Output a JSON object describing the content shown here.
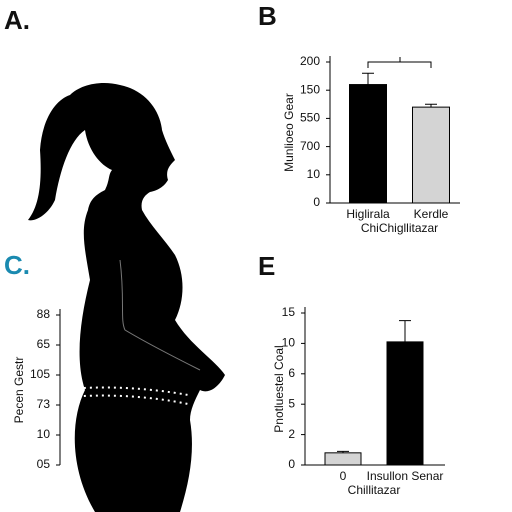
{
  "panel_a": {
    "label": "A."
  },
  "chart_data": [
    {
      "type": "bar",
      "label": "B",
      "ylabel": "Munlioeo Gear",
      "xlabel": "ChiChigllitazar",
      "categories": [
        "Higlirala",
        "Kerdle"
      ],
      "values": [
        4.2,
        3.4
      ],
      "errors": [
        0.4,
        0.1
      ],
      "colors": [
        "#000000",
        "#d4d4d4"
      ],
      "ylim": [
        0,
        5
      ],
      "yticks": [
        {
          "value": 0,
          "label": "0"
        },
        {
          "value": 1,
          "label": "10"
        },
        {
          "value": 2,
          "label": "700"
        },
        {
          "value": 3,
          "label": "550"
        },
        {
          "value": 4,
          "label": "150"
        },
        {
          "value": 5,
          "label": "200"
        }
      ]
    },
    {
      "type": "bar",
      "label": "C.",
      "ylabel": "Pecen Gestr",
      "ylim": [
        0,
        5
      ],
      "yticks": [
        {
          "value": 0,
          "label": "05"
        },
        {
          "value": 1,
          "label": "10"
        },
        {
          "value": 2,
          "label": "73"
        },
        {
          "value": 3,
          "label": "105"
        },
        {
          "value": 4,
          "label": "65"
        },
        {
          "value": 5,
          "label": "88"
        }
      ]
    },
    {
      "type": "bar",
      "label": "E",
      "ylabel": "Pnotluestel Coal",
      "xlabel": "Chillitazar",
      "categories": [
        "0",
        "Insullon Senar"
      ],
      "values": [
        0.4,
        4.05
      ],
      "errors": [
        0.05,
        0.7
      ],
      "colors": [
        "#d4d4d4",
        "#000000"
      ],
      "ylim": [
        0,
        5
      ],
      "yticks": [
        {
          "value": 0,
          "label": "0"
        },
        {
          "value": 1,
          "label": "2"
        },
        {
          "value": 2,
          "label": "5"
        },
        {
          "value": 3,
          "label": "6"
        },
        {
          "value": 4,
          "label": "10"
        },
        {
          "value": 5,
          "label": "15"
        }
      ]
    }
  ]
}
